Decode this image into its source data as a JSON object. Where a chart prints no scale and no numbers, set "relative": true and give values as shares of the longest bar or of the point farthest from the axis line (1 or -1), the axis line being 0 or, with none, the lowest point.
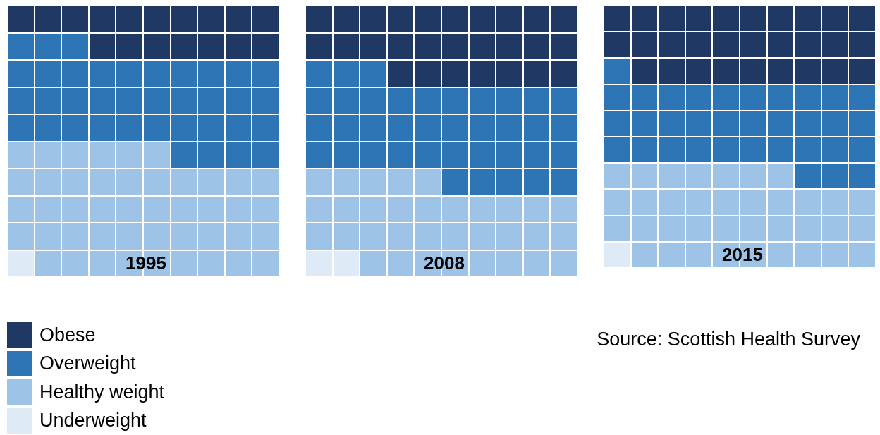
{
  "chart_data": [
    {
      "type": "bar",
      "stacked": true,
      "orientation": "horizontal",
      "relative": true,
      "grid": true,
      "title": "1995",
      "legend": "bottom left",
      "categories": [
        null,
        null,
        null,
        null,
        null,
        null,
        null,
        null,
        null,
        null
      ],
      "series": [
        {
          "name": "Underweight",
          "color": "#deebf7",
          "values": [
            0,
            0,
            0,
            0,
            0,
            0,
            0,
            0,
            0,
            0.1
          ]
        },
        {
          "name": "Healthy weight",
          "color": "#9dc3e6",
          "values": [
            0,
            0,
            0,
            0,
            0,
            0.6,
            1,
            1,
            1,
            0.9
          ]
        },
        {
          "name": "Overweight",
          "color": "#2e75b6",
          "values": [
            0,
            0.3,
            1,
            1,
            1,
            0.4,
            0,
            0,
            0,
            0
          ]
        },
        {
          "name": "Obese",
          "color": "#1f3864",
          "values": [
            1,
            0.7,
            0,
            0,
            0,
            0,
            0,
            0,
            0,
            0
          ]
        }
      ]
    },
    {
      "type": "bar",
      "stacked": true,
      "orientation": "horizontal",
      "relative": true,
      "grid": true,
      "title": "2008",
      "categories": [
        null,
        null,
        null,
        null,
        null,
        null,
        null,
        null,
        null,
        null
      ],
      "series": [
        {
          "color": "#deebf7",
          "values": [
            0,
            0,
            0,
            0,
            0,
            0,
            0,
            0,
            0,
            0.2
          ]
        },
        {
          "color": "#9dc3e6",
          "values": [
            0,
            0,
            0,
            0,
            0,
            0,
            0.5,
            1,
            1,
            0.8
          ]
        },
        {
          "color": "#2e75b6",
          "values": [
            0,
            0,
            0.3,
            1,
            1,
            1,
            0.5,
            0,
            0,
            0
          ]
        },
        {
          "color": "#1f3864",
          "values": [
            1,
            1,
            0.7,
            0,
            0,
            0,
            0,
            0,
            0,
            0
          ]
        }
      ]
    },
    {
      "type": "bar",
      "stacked": true,
      "orientation": "horizontal",
      "relative": true,
      "grid": true,
      "title": "2015",
      "annotations": [
        "Source: Scottish Health Survey"
      ],
      "categories": [
        null,
        null,
        null,
        null,
        null,
        null,
        null,
        null,
        null,
        null
      ],
      "series": [
        {
          "color": "#deebf7",
          "values": [
            0,
            0,
            0,
            0,
            0,
            0,
            0,
            0,
            0,
            0.1
          ]
        },
        {
          "color": "#9dc3e6",
          "values": [
            0,
            0,
            0,
            0,
            0,
            0,
            0.7,
            1,
            1,
            0.9
          ]
        },
        {
          "color": "#2e75b6",
          "values": [
            0,
            0,
            0.1,
            1,
            1,
            1,
            0.3,
            0,
            0,
            0
          ]
        },
        {
          "color": "#1f3864",
          "values": [
            1,
            1,
            0.9,
            0,
            0,
            0,
            0,
            0,
            0,
            0
          ]
        }
      ]
    }
  ]
}
